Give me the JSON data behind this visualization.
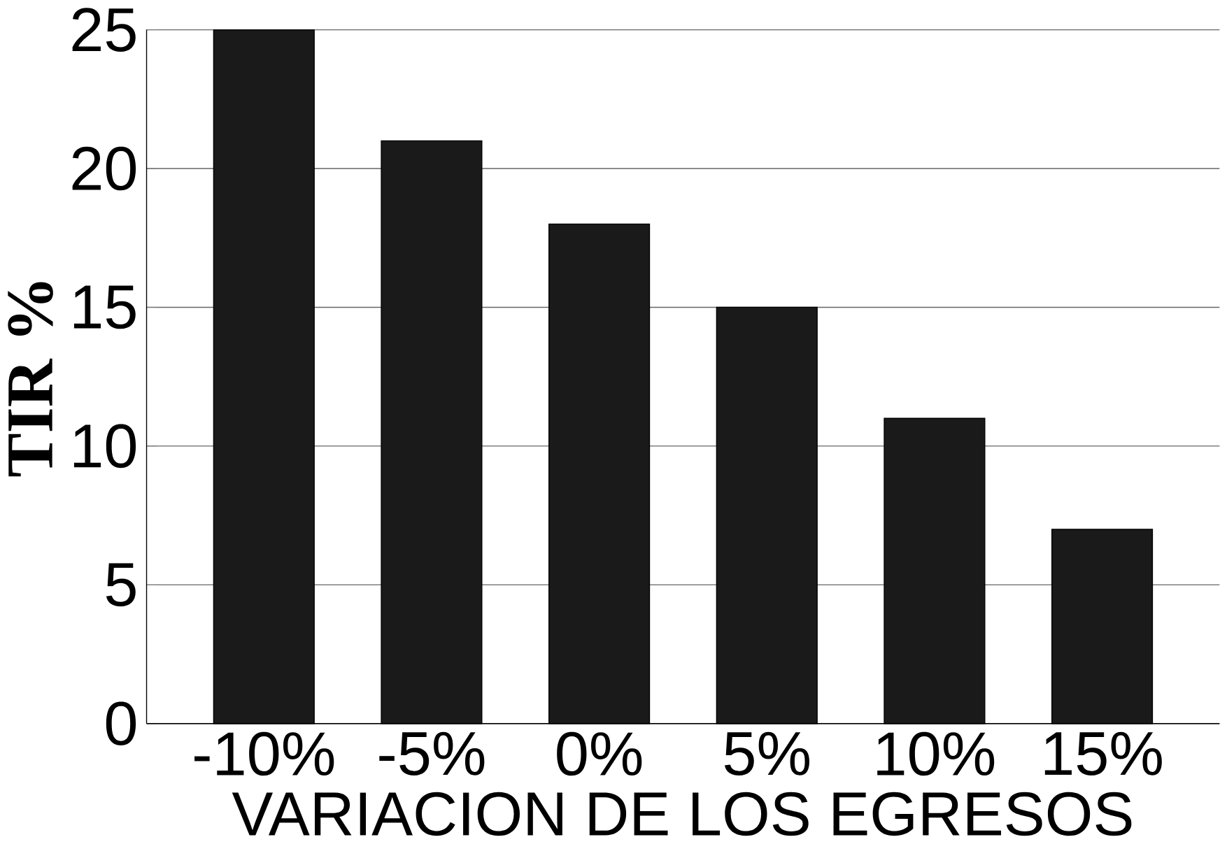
{
  "chart_data": {
    "type": "bar",
    "xlabel": "VARIACION DE LOS EGRESOS",
    "ylabel": "TIR %",
    "categories": [
      "-10%",
      "-5%",
      "0%",
      "5%",
      "10%",
      "15%"
    ],
    "values": [
      25,
      21,
      18,
      15,
      11,
      7
    ],
    "color": "#1a1a1a",
    "ylim": [
      0,
      25
    ],
    "yticks": [
      0,
      5,
      10,
      15,
      20,
      25
    ],
    "grid": "y"
  }
}
